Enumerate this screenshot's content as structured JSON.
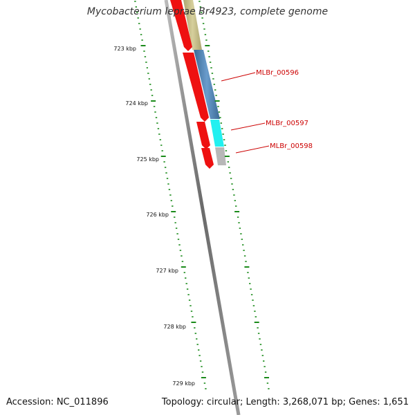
{
  "title": "Mycobacterium leprae Br4923, complete genome",
  "accession": "Accession: NC_011896",
  "summary": "Topology: circular; Length: 3,268,071 bp; Genes: 1,651",
  "scale_labels": [
    "723 kbp",
    "724 kbp",
    "725 kbp",
    "726 kbp",
    "727 kbp",
    "728 kbp",
    "729 kbp"
  ],
  "gene_labels": [
    "MLBr_00596",
    "MLBr_00597",
    "MLBr_00598"
  ],
  "colors": {
    "backbone": "#888888",
    "tick": "#1a8a1a",
    "cds": "#ee1111",
    "gene_label": "#cc0000",
    "olive": "#c8c08a",
    "steel_blue": "#4f86b8",
    "cyan": "#22f0f0",
    "gray_feature": "#b8b8b8"
  }
}
